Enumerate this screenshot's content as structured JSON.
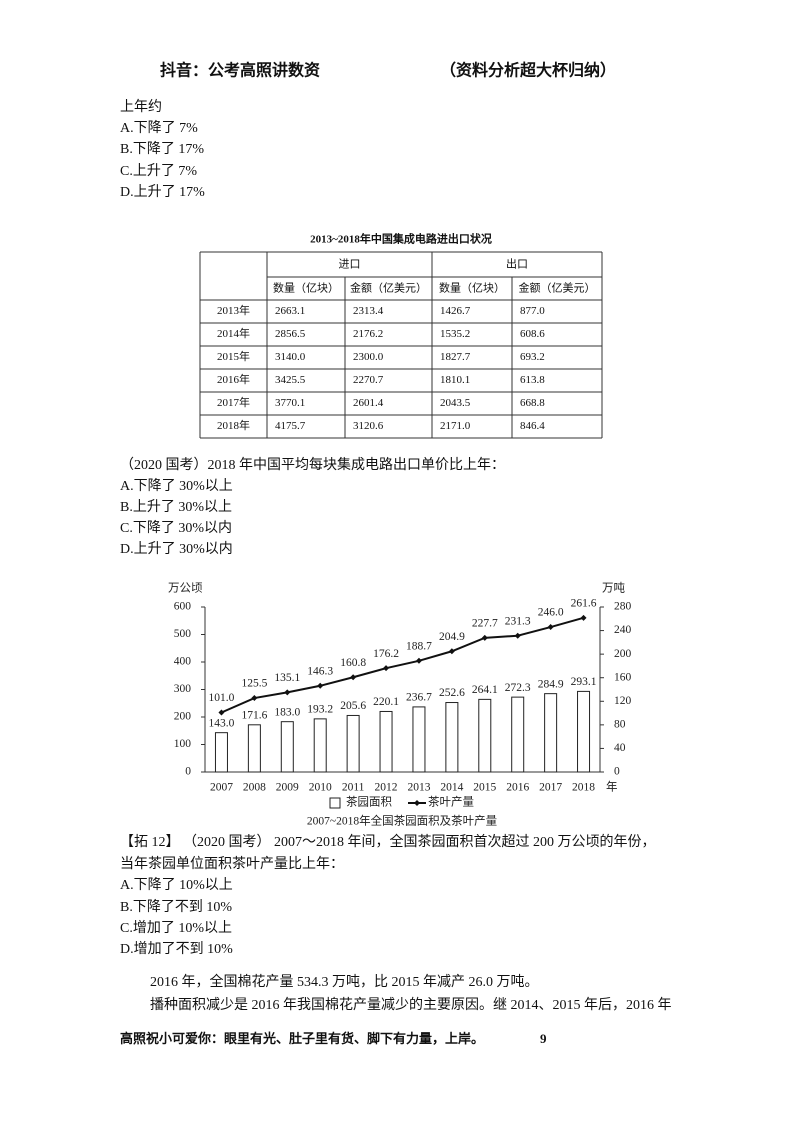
{
  "header": {
    "left": "抖音：公考高照讲数资",
    "right": "（资料分析超大杯归纳）"
  },
  "section1": {
    "lines": [
      "上年约",
      "A.下降了 7%",
      "B.下降了 17%",
      "C.上升了 7%",
      "D.上升了 17%"
    ]
  },
  "table": {
    "title": "2013~2018年中国集成电路进出口状况",
    "groups": [
      "进口",
      "出口"
    ],
    "columns": [
      "数量（亿块）",
      "金额（亿美元）",
      "数量（亿块）",
      "金额（亿美元）"
    ],
    "rows": [
      [
        "2013年",
        "2663.1",
        "2313.4",
        "1426.7",
        "877.0"
      ],
      [
        "2014年",
        "2856.5",
        "2176.2",
        "1535.2",
        "608.6"
      ],
      [
        "2015年",
        "3140.0",
        "2300.0",
        "1827.7",
        "693.2"
      ],
      [
        "2016年",
        "3425.5",
        "2270.7",
        "1810.1",
        "613.8"
      ],
      [
        "2017年",
        "3770.1",
        "2601.4",
        "2043.5",
        "668.8"
      ],
      [
        "2018年",
        "4175.7",
        "3120.6",
        "2171.0",
        "846.4"
      ]
    ]
  },
  "question2": {
    "lines": [
      "（2020 国考）2018 年中国平均每块集成电路出口单价比上年：",
      "A.下降了 30%以上",
      "B.上升了 30%以上",
      "C.下降了 30%以内",
      "D.上升了 30%以内"
    ]
  },
  "chart_data": {
    "type": "combo",
    "title": "2007~2018年全国茶园面积及茶叶产量",
    "ylabel": "万公顷",
    "y2label": "万吨",
    "xlabel": "年",
    "categories": [
      "2007",
      "2008",
      "2009",
      "2010",
      "2011",
      "2012",
      "2013",
      "2014",
      "2015",
      "2016",
      "2017",
      "2018"
    ],
    "series": [
      {
        "name": "茶园面积",
        "type": "bar",
        "color": "#ffffff",
        "values": [
          143.0,
          171.6,
          183.0,
          193.2,
          205.6,
          220.1,
          236.7,
          252.6,
          264.1,
          272.3,
          284.9,
          293.1
        ],
        "value_labels": [
          "143.0",
          "171.6",
          "183.0",
          "193.2",
          "205.6",
          "220.1",
          "236.7",
          "252.6",
          "264.1",
          "272.3",
          "284.9",
          "293.1"
        ]
      },
      {
        "name": "茶叶产量",
        "type": "line",
        "axis": "y2",
        "color": "#111111",
        "values": [
          101.0,
          125.5,
          135.1,
          146.3,
          160.8,
          176.2,
          188.7,
          204.9,
          227.7,
          231.3,
          246.0,
          261.6
        ],
        "value_labels": [
          "101.0",
          "125.5",
          "135.1",
          "146.3",
          "160.8",
          "176.2",
          "188.7",
          "204.9",
          "227.7",
          "231.3",
          "246.0",
          "261.6"
        ]
      }
    ],
    "ylim": [
      0,
      600
    ],
    "yticks": [
      0,
      100,
      200,
      300,
      400,
      500,
      600
    ],
    "y2lim": [
      0,
      280
    ],
    "y2ticks": [
      0,
      40,
      80,
      120,
      160,
      200,
      240,
      280
    ]
  },
  "question3": {
    "lines": [
      "【拓 12】 （2020 国考） 2007～2018 年间，全国茶园面积首次超过 200 万公顷的年份，",
      "当年茶园单位面积茶叶产量比上年：",
      "A.下降了 10%以上",
      "B.下降了不到 10%",
      "C.增加了 10%以上",
      "D.增加了不到 10%"
    ]
  },
  "paragraph": {
    "lines": [
      "2016 年，全国棉花产量 534.3 万吨，比 2015 年减产 26.0 万吨。",
      "播种面积减少是 2016 年我国棉花产量减少的主要原因。继 2014、2015 年后，2016 年"
    ]
  },
  "footer": {
    "text": "高照祝小可爱你：眼里有光、肚子里有货、脚下有力量，上岸。",
    "page": "9"
  }
}
